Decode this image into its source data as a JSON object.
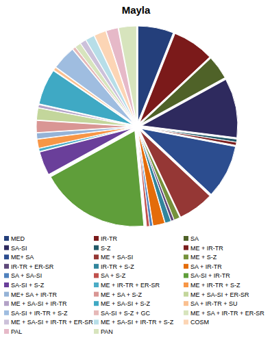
{
  "chart_data": {
    "type": "pie",
    "title": "Mayla",
    "categories": [
      "MED",
      "IR-TR",
      "SA",
      "SA-SI",
      "S-Z",
      "ME + IR-TR",
      "ME+ SA",
      "ME + SA-SI",
      "ME + S-Z",
      "IR-TR + ER-SR",
      "IR-TR + S-Z",
      "SA + IR-TR",
      "SA + SA-SI",
      "SA + S-Z",
      "SA-SI + IR-TR",
      "SA-SI + S-Z",
      "ME + IR-TR + ER-SR",
      "ME + IR-TR + S-Z",
      "ME+ SA + IR-TR",
      "ME + SA + S-Z",
      "ME + SA-SI + ER-SR",
      "ME + SA-SI + IR-TR",
      "ME + SA-SI + S-Z",
      "SA + IR-TR + SU",
      "SA-SI + IR-TR + S-Z",
      "SA-SI + S-Z + GC",
      "ME + SA + IR-TR + ER-SR",
      "ME + SA-SI + IR-TR + ER-SR",
      "ME + SA-SI + IR-TR + S-Z",
      "COSM",
      "PAL",
      "PAN"
    ],
    "values": [
      6,
      7,
      4,
      10,
      0.5,
      0.5,
      9,
      6,
      1,
      0.5,
      1,
      2,
      0.5,
      0.5,
      18.5,
      4,
      0.5,
      1.5,
      1,
      2,
      2,
      0.5,
      6,
      0.5,
      4,
      0.5,
      1,
      1,
      1.5,
      2,
      2,
      3
    ],
    "colors": [
      "#243f7b",
      "#7b1a1a",
      "#4f6228",
      "#2e2a5e",
      "#215968",
      "#7a1e1e",
      "#2c4d8f",
      "#953735",
      "#76923c",
      "#5f497a",
      "#31859c",
      "#e46c0a",
      "#4f81bd",
      "#c0504d",
      "#5f9e3a",
      "#6a3f9a",
      "#4bacc6",
      "#f79646",
      "#95b3d7",
      "#d99694",
      "#c3d69b",
      "#b3a2c7",
      "#3fa9c4",
      "#fac090",
      "#9fbde0",
      "#e6b9b8",
      "#d7e4bd",
      "#ccc1da",
      "#b7dee8",
      "#fcd5b5",
      "#e6b9c8",
      "#d7e4bd"
    ],
    "legend": "bottom"
  }
}
